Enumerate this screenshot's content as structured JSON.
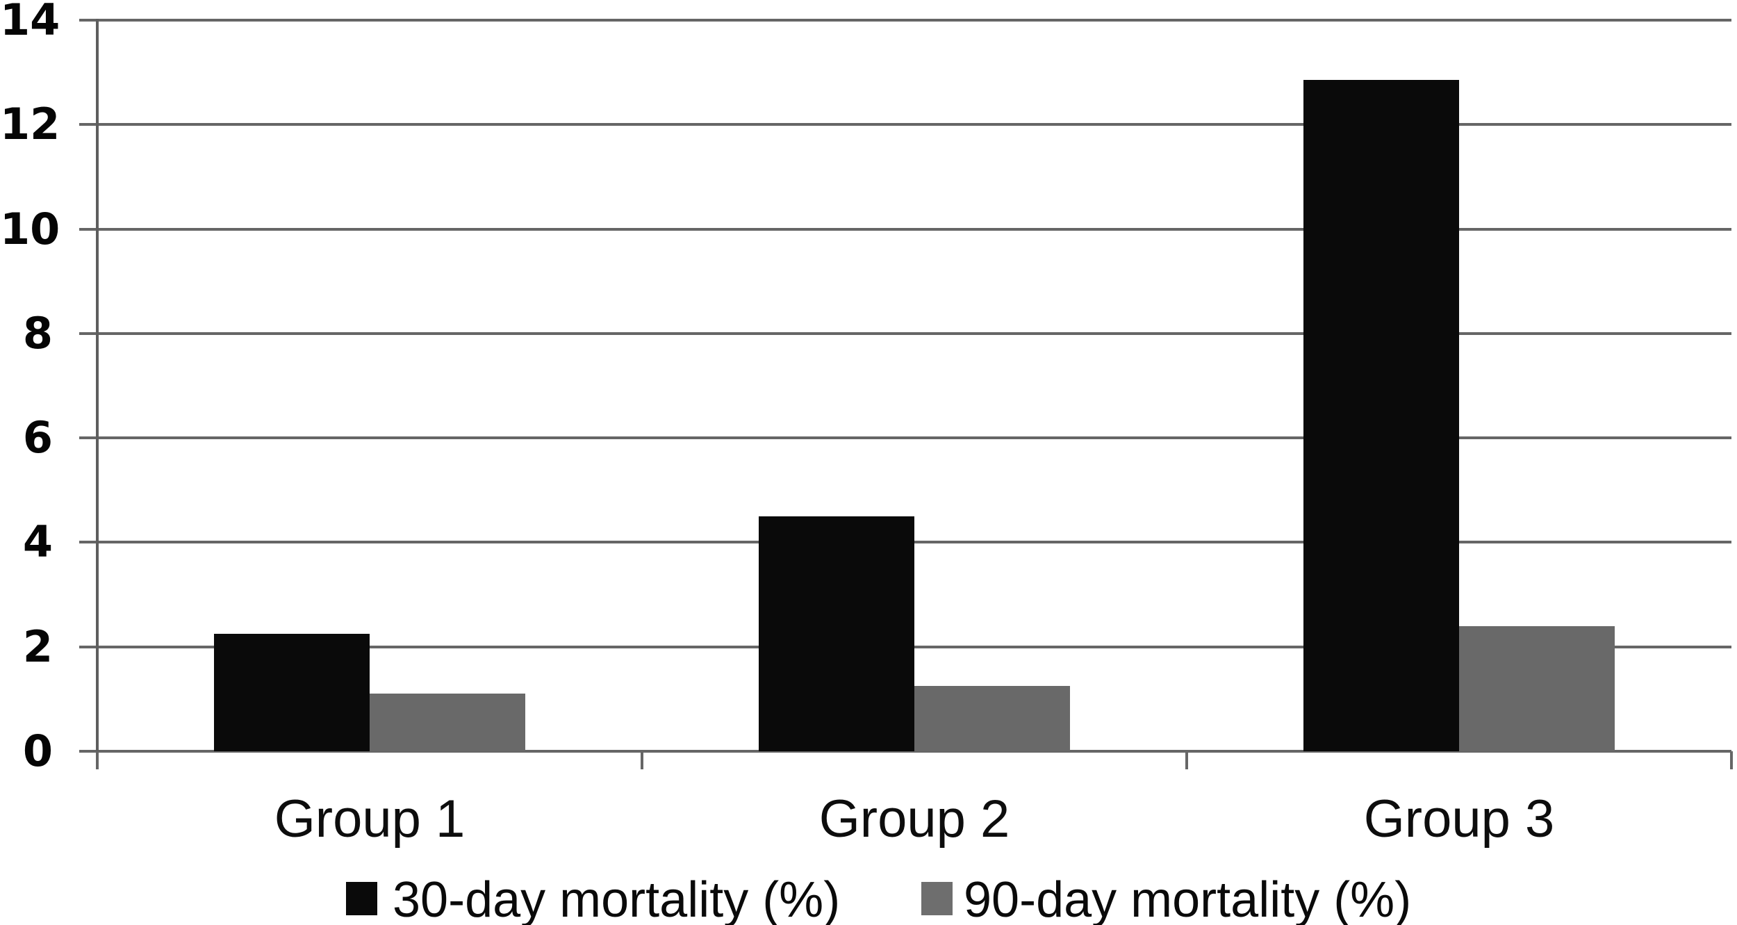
{
  "chart_data": {
    "type": "bar",
    "title": "",
    "xlabel": "",
    "ylabel": "",
    "categories": [
      "Group 1",
      "Group 2",
      "Group 3"
    ],
    "series": [
      {
        "name": "30-day mortality (%)",
        "color": "#0a0a0a",
        "values": [
          2.25,
          4.5,
          12.85
        ]
      },
      {
        "name": "90-day mortality (%)",
        "color": "#696969",
        "values": [
          1.1,
          1.25,
          2.4
        ]
      }
    ],
    "ylim": [
      0,
      14
    ],
    "yticks": [
      0,
      2,
      4,
      6,
      8,
      10,
      12,
      14
    ],
    "grid": "horizontal",
    "gridline_color": "#666666",
    "legend_position": "bottom",
    "background": "#ffffff"
  },
  "legend": {
    "items": [
      {
        "label": "30-day mortality (%)",
        "swatch_color": "#0a0a0a"
      },
      {
        "label": "90-day mortality (%)",
        "swatch_color": "#6e6e6e"
      }
    ]
  }
}
